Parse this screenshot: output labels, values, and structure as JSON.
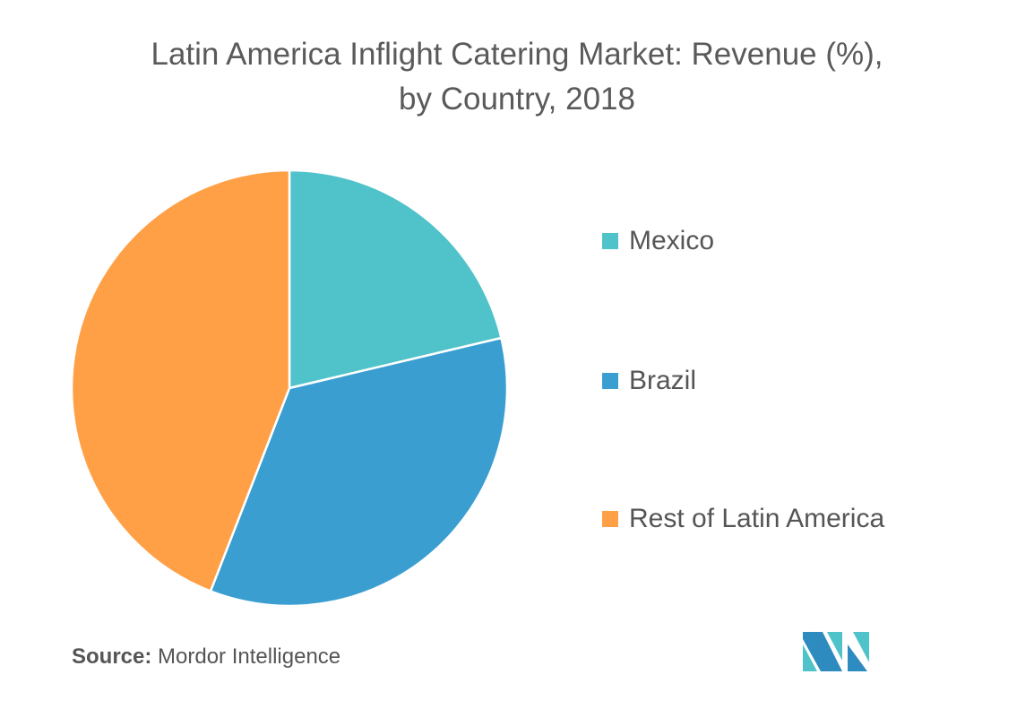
{
  "chart_data": {
    "type": "pie",
    "title": "Latin America Inflight Catering Market: Revenue (%),",
    "subtitle": "by Country, 2018",
    "categories": [
      "Mexico",
      "Brazil",
      "Rest of Latin America"
    ],
    "values": [
      21.3,
      34.6,
      44.1
    ],
    "colors": [
      "#4fc3c9",
      "#3b9ed1",
      "#ffa047"
    ],
    "legend_position": "right"
  },
  "source": {
    "label": "Source:",
    "text": "Mordor Intelligence"
  }
}
